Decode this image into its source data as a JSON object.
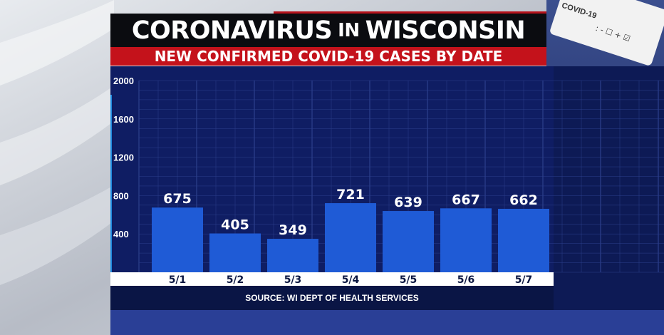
{
  "header": {
    "title_main_1": "CORONAVIRUS",
    "title_small": "IN",
    "title_main_2": "WISCONSIN",
    "subtitle": "NEW CONFIRMED COVID-19 CASES BY DATE"
  },
  "background": {
    "test_card_text": "COVID-19",
    "checkbox_marks": ": - ☐ + ☑"
  },
  "source": "SOURCE: WI DEPT OF HEALTH SERVICES",
  "colors": {
    "bar": "#1f5bd6",
    "panel": "#0d1a55",
    "title_bg": "#0b0c10",
    "subtitle_bg": "#c4121b"
  },
  "chart_data": {
    "type": "bar",
    "title": "NEW CONFIRMED COVID-19 CASES BY DATE",
    "categories": [
      "5/1",
      "5/2",
      "5/3",
      "5/4",
      "5/5",
      "5/6",
      "5/7"
    ],
    "values": [
      675,
      405,
      349,
      721,
      639,
      667,
      662
    ],
    "ylim": [
      0,
      2000
    ],
    "yticks": [
      400,
      800,
      1200,
      1600,
      2000
    ],
    "grid": true,
    "legend": "none"
  }
}
